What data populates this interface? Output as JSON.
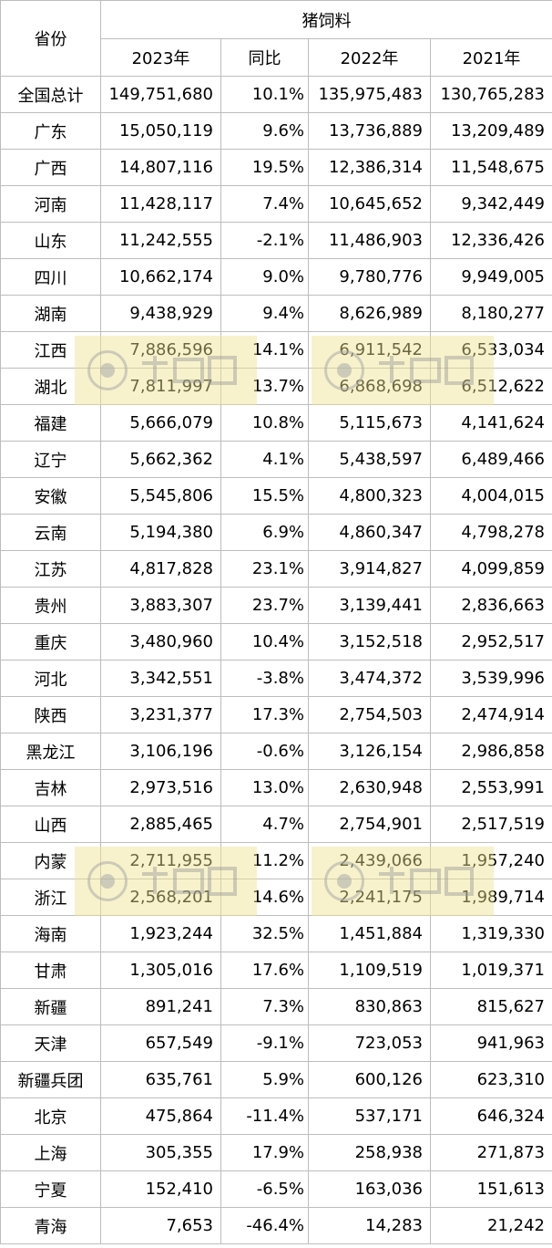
{
  "header": {
    "province": "省份",
    "group": "猪饲料",
    "col_2023": "2023年",
    "col_yoy": "同比",
    "col_2022": "2022年",
    "col_2021": "2021年"
  },
  "rows": [
    {
      "province": "全国总计",
      "y2023": "149,751,680",
      "yoy": "10.1%",
      "y2022": "135,975,483",
      "y2021": "130,765,283"
    },
    {
      "province": "广东",
      "y2023": "15,050,119",
      "yoy": "9.6%",
      "y2022": "13,736,889",
      "y2021": "13,209,489"
    },
    {
      "province": "广西",
      "y2023": "14,807,116",
      "yoy": "19.5%",
      "y2022": "12,386,314",
      "y2021": "11,548,675"
    },
    {
      "province": "河南",
      "y2023": "11,428,117",
      "yoy": "7.4%",
      "y2022": "10,645,652",
      "y2021": "9,342,449"
    },
    {
      "province": "山东",
      "y2023": "11,242,555",
      "yoy": "-2.1%",
      "y2022": "11,486,903",
      "y2021": "12,336,426"
    },
    {
      "province": "四川",
      "y2023": "10,662,174",
      "yoy": "9.0%",
      "y2022": "9,780,776",
      "y2021": "9,949,005"
    },
    {
      "province": "湖南",
      "y2023": "9,438,929",
      "yoy": "9.4%",
      "y2022": "8,626,989",
      "y2021": "8,180,277"
    },
    {
      "province": "江西",
      "y2023": "7,886,596",
      "yoy": "14.1%",
      "y2022": "6,911,542",
      "y2021": "6,533,034"
    },
    {
      "province": "湖北",
      "y2023": "7,811,997",
      "yoy": "13.7%",
      "y2022": "6,868,698",
      "y2021": "6,512,622"
    },
    {
      "province": "福建",
      "y2023": "5,666,079",
      "yoy": "10.8%",
      "y2022": "5,115,673",
      "y2021": "4,141,624"
    },
    {
      "province": "辽宁",
      "y2023": "5,662,362",
      "yoy": "4.1%",
      "y2022": "5,438,597",
      "y2021": "6,489,466"
    },
    {
      "province": "安徽",
      "y2023": "5,545,806",
      "yoy": "15.5%",
      "y2022": "4,800,323",
      "y2021": "4,004,015"
    },
    {
      "province": "云南",
      "y2023": "5,194,380",
      "yoy": "6.9%",
      "y2022": "4,860,347",
      "y2021": "4,798,278"
    },
    {
      "province": "江苏",
      "y2023": "4,817,828",
      "yoy": "23.1%",
      "y2022": "3,914,827",
      "y2021": "4,099,859"
    },
    {
      "province": "贵州",
      "y2023": "3,883,307",
      "yoy": "23.7%",
      "y2022": "3,139,441",
      "y2021": "2,836,663"
    },
    {
      "province": "重庆",
      "y2023": "3,480,960",
      "yoy": "10.4%",
      "y2022": "3,152,518",
      "y2021": "2,952,517"
    },
    {
      "province": "河北",
      "y2023": "3,342,551",
      "yoy": "-3.8%",
      "y2022": "3,474,372",
      "y2021": "3,539,996"
    },
    {
      "province": "陕西",
      "y2023": "3,231,377",
      "yoy": "17.3%",
      "y2022": "2,754,503",
      "y2021": "2,474,914"
    },
    {
      "province": "黑龙江",
      "y2023": "3,106,196",
      "yoy": "-0.6%",
      "y2022": "3,126,154",
      "y2021": "2,986,858"
    },
    {
      "province": "吉林",
      "y2023": "2,973,516",
      "yoy": "13.0%",
      "y2022": "2,630,948",
      "y2021": "2,553,991"
    },
    {
      "province": "山西",
      "y2023": "2,885,465",
      "yoy": "4.7%",
      "y2022": "2,754,901",
      "y2021": "2,517,519"
    },
    {
      "province": "内蒙",
      "y2023": "2,711,955",
      "yoy": "11.2%",
      "y2022": "2,439,066",
      "y2021": "1,957,240"
    },
    {
      "province": "浙江",
      "y2023": "2,568,201",
      "yoy": "14.6%",
      "y2022": "2,241,175",
      "y2021": "1,989,714"
    },
    {
      "province": "海南",
      "y2023": "1,923,244",
      "yoy": "32.5%",
      "y2022": "1,451,884",
      "y2021": "1,319,330"
    },
    {
      "province": "甘肃",
      "y2023": "1,305,016",
      "yoy": "17.6%",
      "y2022": "1,109,519",
      "y2021": "1,019,371"
    },
    {
      "province": "新疆",
      "y2023": "891,241",
      "yoy": "7.3%",
      "y2022": "830,863",
      "y2021": "815,627"
    },
    {
      "province": "天津",
      "y2023": "657,549",
      "yoy": "-9.1%",
      "y2022": "723,053",
      "y2021": "941,963"
    },
    {
      "province": "新疆兵团",
      "y2023": "635,761",
      "yoy": "5.9%",
      "y2022": "600,126",
      "y2021": "623,310"
    },
    {
      "province": "北京",
      "y2023": "475,864",
      "yoy": "-11.4%",
      "y2022": "537,171",
      "y2021": "646,324"
    },
    {
      "province": "上海",
      "y2023": "305,355",
      "yoy": "17.9%",
      "y2022": "258,938",
      "y2021": "271,873"
    },
    {
      "province": "宁夏",
      "y2023": "152,410",
      "yoy": "-6.5%",
      "y2022": "163,036",
      "y2021": "151,613"
    },
    {
      "province": "青海",
      "y2023": "7,653",
      "yoy": "-46.4%",
      "y2022": "14,283",
      "y2021": "21,242"
    }
  ],
  "watermark": {
    "icon": "livestock-logo-icon",
    "color": "#eee28c"
  }
}
